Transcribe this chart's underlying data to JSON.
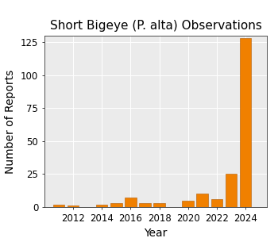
{
  "years": [
    2011,
    2012,
    2013,
    2014,
    2015,
    2016,
    2017,
    2018,
    2019,
    2020,
    2021,
    2022,
    2023,
    2024
  ],
  "values": [
    2,
    1,
    0,
    2,
    3,
    7,
    3,
    3,
    0,
    5,
    10,
    6,
    25,
    128
  ],
  "bar_color": "#F08000",
  "bar_edge_color": "#B05800",
  "title": "Short Bigeye (P. alta) Observations",
  "xlabel": "Year",
  "ylabel": "Number of Reports",
  "xlim": [
    2010.0,
    2025.5
  ],
  "ylim": [
    0,
    130
  ],
  "yticks": [
    0,
    25,
    50,
    75,
    100,
    125
  ],
  "xticks": [
    2012,
    2014,
    2016,
    2018,
    2020,
    2022,
    2024
  ],
  "bg_color": "#EBEBEB",
  "title_fontsize": 11,
  "axis_label_fontsize": 10,
  "tick_fontsize": 8.5
}
